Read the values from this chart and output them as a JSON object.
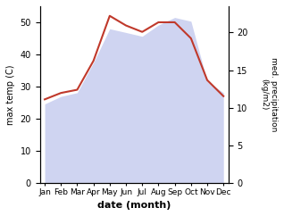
{
  "months": [
    "Jan",
    "Feb",
    "Mar",
    "Apr",
    "May",
    "Jun",
    "Jul",
    "Aug",
    "Sep",
    "Oct",
    "Nov",
    "Dec"
  ],
  "temp_max": [
    26,
    28,
    29,
    38,
    52,
    49,
    47,
    50,
    50,
    45,
    32,
    27
  ],
  "precip": [
    10.5,
    11.5,
    12.0,
    16.0,
    20.5,
    20.0,
    19.5,
    21.0,
    22.0,
    21.5,
    13.5,
    12.0
  ],
  "temp_ylim": [
    0,
    55
  ],
  "precip_ylim": [
    0,
    23.5
  ],
  "temp_yticks": [
    0,
    10,
    20,
    30,
    40,
    50
  ],
  "precip_yticks": [
    0,
    5,
    10,
    15,
    20
  ],
  "xlabel": "date (month)",
  "ylabel_left": "max temp (C)",
  "ylabel_right": "med. precipitation\n(kg/m2)",
  "line_color": "#c0392b",
  "fill_color": "#b0b8e8",
  "fill_alpha": 0.6,
  "bg_color": "#ffffff",
  "line_width": 1.5
}
